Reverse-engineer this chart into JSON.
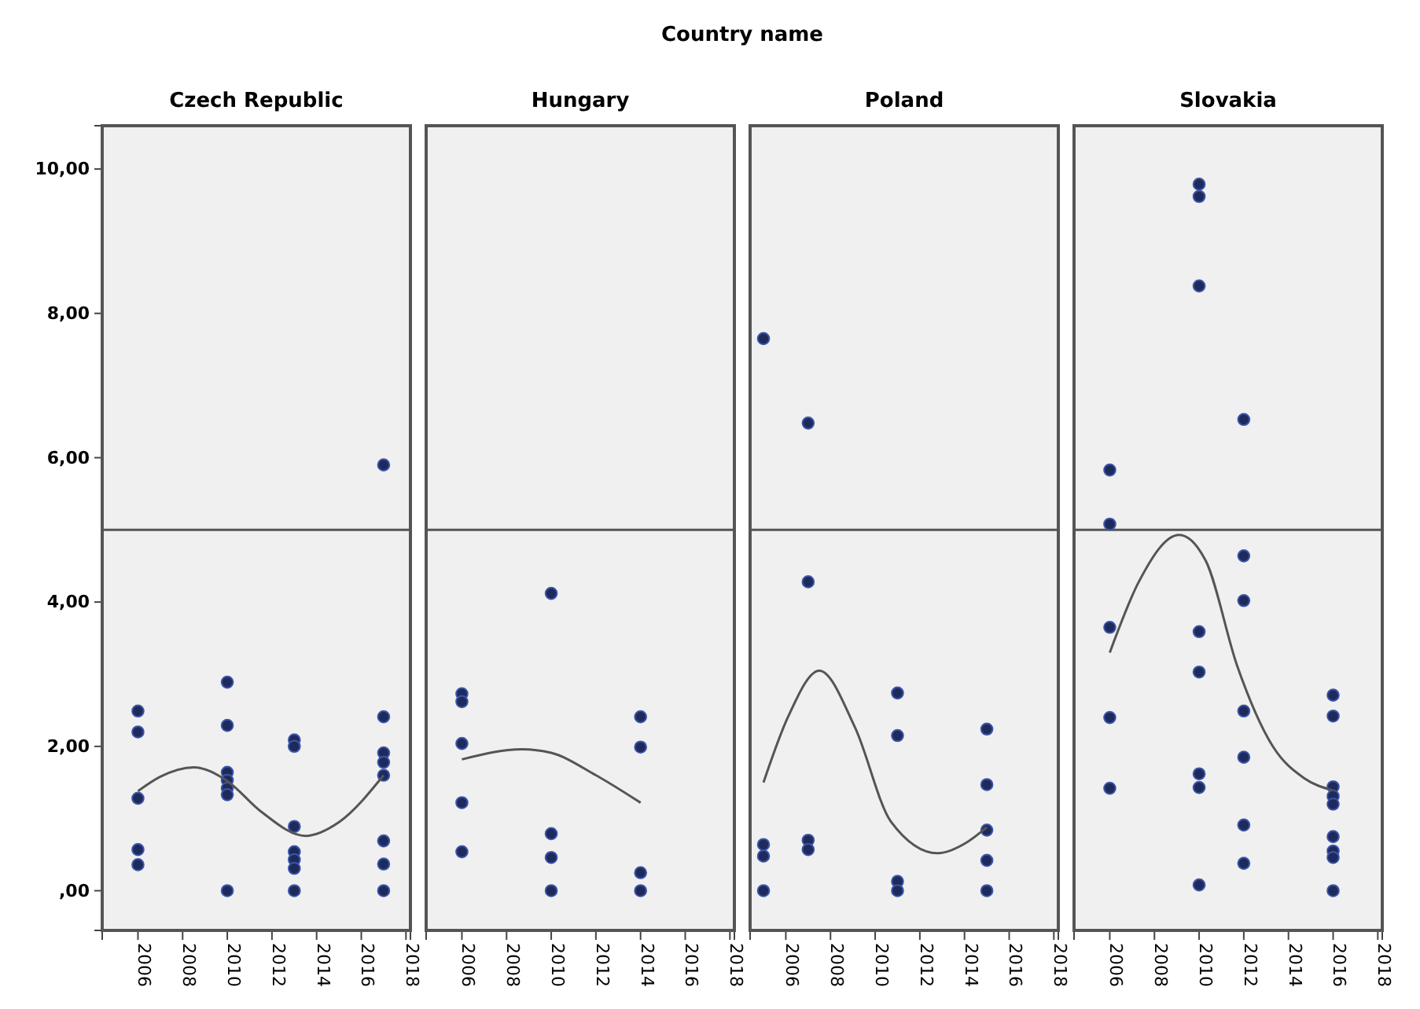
{
  "chart_data": [
    {
      "type": "scatter",
      "title": "Czech Republic",
      "annotations": [
        "Country name"
      ],
      "xlim": [
        2004.4,
        2018.2
      ],
      "xticks": [
        2006,
        2008,
        2010,
        2012,
        2014,
        2016,
        2018
      ],
      "ylim": [
        -0.55,
        10.6
      ],
      "yticks": [
        {
          "value": 0,
          "label": ",00"
        },
        {
          "value": 2,
          "label": "2,00"
        },
        {
          "value": 4,
          "label": "4,00"
        },
        {
          "value": 6,
          "label": "6,00"
        },
        {
          "value": 8,
          "label": "8,00"
        },
        {
          "value": 10,
          "label": "10,00"
        }
      ],
      "grid": false,
      "ref_lines": [
        {
          "axis": "y",
          "value": 5,
          "color": "#555555"
        }
      ],
      "series": [
        {
          "color": "#1f2a5c",
          "marker": "circle",
          "x": [
            2006,
            2006,
            2006,
            2006,
            2006,
            2010,
            2010,
            2010,
            2010,
            2010,
            2010,
            2010,
            2013,
            2013,
            2013,
            2013,
            2013,
            2013,
            2013,
            2017,
            2017,
            2017,
            2017,
            2017,
            2017,
            2017,
            2017
          ],
          "values": [
            2.49,
            2.2,
            1.28,
            0.57,
            0.36,
            2.89,
            2.29,
            1.64,
            1.53,
            1.42,
            1.33,
            0,
            2.09,
            2.0,
            0.89,
            0.54,
            0.43,
            0.31,
            0,
            5.9,
            2.41,
            1.91,
            1.78,
            1.6,
            0.69,
            0.37,
            0
          ]
        },
        {
          "type": "line",
          "color": "#555555",
          "line_style": "solid",
          "marker": "none",
          "x": [
            2006,
            2007,
            2008.5,
            2010,
            2011.5,
            2013.5,
            2015,
            2017
          ],
          "values": [
            1.38,
            1.58,
            1.71,
            1.52,
            1.1,
            0.76,
            0.95,
            1.6
          ]
        }
      ]
    },
    {
      "type": "scatter",
      "title": "Hungary",
      "tick_labels": "x",
      "xlim": [
        2004.4,
        2018.2
      ],
      "xticks": [
        2006,
        2008,
        2010,
        2012,
        2014,
        2016,
        2018
      ],
      "ylim": [
        -0.55,
        10.6
      ],
      "grid": false,
      "ref_lines": [
        {
          "axis": "y",
          "value": 5,
          "color": "#555555"
        }
      ],
      "series": [
        {
          "color": "#1f2a5c",
          "marker": "circle",
          "x": [
            2006,
            2006,
            2006,
            2006,
            2006,
            2010,
            2010,
            2010,
            2010,
            2014,
            2014,
            2014,
            2014
          ],
          "values": [
            2.73,
            2.62,
            2.04,
            1.22,
            0.54,
            4.12,
            0.79,
            0.46,
            0,
            2.41,
            1.99,
            0.25,
            0
          ]
        },
        {
          "type": "line",
          "color": "#555555",
          "line_style": "solid",
          "marker": "none",
          "x": [
            2006,
            2008.7,
            2010,
            2012,
            2014
          ],
          "values": [
            1.82,
            1.96,
            1.91,
            1.6,
            1.22
          ]
        }
      ]
    },
    {
      "type": "scatter",
      "title": "Poland",
      "tick_labels": "x",
      "xlim": [
        2004.4,
        2018.2
      ],
      "xticks": [
        2006,
        2008,
        2010,
        2012,
        2014,
        2016,
        2018
      ],
      "ylim": [
        -0.55,
        10.6
      ],
      "grid": false,
      "ref_lines": [
        {
          "axis": "y",
          "value": 5,
          "color": "#555555"
        }
      ],
      "series": [
        {
          "color": "#1f2a5c",
          "marker": "circle",
          "x": [
            2005,
            2005,
            2005,
            2005,
            2007,
            2007,
            2007,
            2007,
            2011,
            2011,
            2011,
            2011,
            2015,
            2015,
            2015,
            2015,
            2015
          ],
          "values": [
            7.65,
            0.64,
            0.48,
            0,
            6.48,
            4.28,
            0.7,
            0.57,
            2.74,
            2.15,
            0.13,
            0,
            2.24,
            1.47,
            0.84,
            0.42,
            0
          ]
        },
        {
          "type": "line",
          "color": "#555555",
          "line_style": "solid",
          "marker": "none",
          "x": [
            2005,
            2006.1,
            2007.5,
            2009.1,
            2010.7,
            2012.8,
            2014.1,
            2015
          ],
          "values": [
            1.5,
            2.41,
            3.05,
            2.26,
            0.96,
            0.52,
            0.67,
            0.88
          ]
        }
      ]
    },
    {
      "type": "scatter",
      "title": "Slovakia",
      "tick_labels": "x",
      "xlim": [
        2004.4,
        2018.2
      ],
      "xticks": [
        2006,
        2008,
        2010,
        2012,
        2014,
        2016,
        2018
      ],
      "ylim": [
        -0.55,
        10.6
      ],
      "grid": false,
      "ref_lines": [
        {
          "axis": "y",
          "value": 5,
          "color": "#555555"
        }
      ],
      "series": [
        {
          "color": "#1f2a5c",
          "marker": "circle",
          "x": [
            2006,
            2006,
            2006,
            2006,
            2006,
            2010,
            2010,
            2010,
            2010,
            2010,
            2010,
            2010,
            2010,
            2012,
            2012,
            2012,
            2012,
            2012,
            2012,
            2012,
            2016,
            2016,
            2016,
            2016,
            2016,
            2016,
            2016,
            2016,
            2016
          ],
          "values": [
            5.83,
            5.08,
            3.65,
            2.4,
            1.42,
            9.79,
            9.62,
            8.38,
            3.59,
            3.03,
            1.62,
            1.43,
            0.08,
            6.53,
            4.64,
            4.02,
            2.49,
            1.85,
            0.91,
            0.38,
            2.71,
            2.42,
            1.44,
            1.31,
            1.2,
            0.75,
            0.55,
            0.46,
            0
          ]
        },
        {
          "type": "line",
          "color": "#555555",
          "line_style": "solid",
          "marker": "none",
          "x": [
            2006,
            2007.3,
            2009.1,
            2010.3,
            2011.7,
            2013.3,
            2014.7,
            2016
          ],
          "values": [
            3.3,
            4.28,
            4.93,
            4.57,
            3.12,
            2.0,
            1.56,
            1.39
          ]
        }
      ]
    }
  ]
}
